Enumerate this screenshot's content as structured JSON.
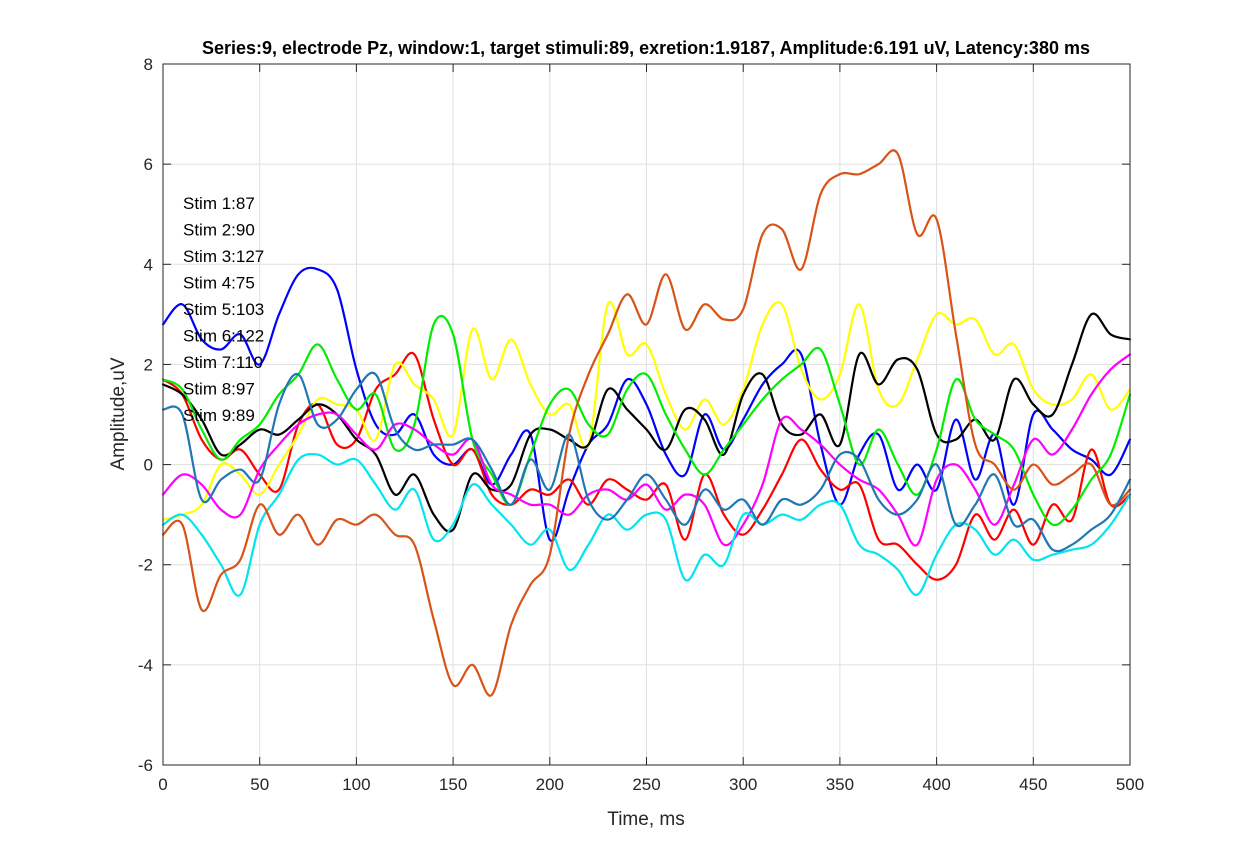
{
  "chart_data": {
    "type": "line",
    "title": "Series:9, electrode Pz, window:1, target stimuli:89, exretion:1.9187, Amplitude:6.191 uV, Latency:380 ms",
    "xlabel": "Time, ms",
    "ylabel": "Amplitude,uV",
    "xlim": [
      0,
      500
    ],
    "ylim": [
      -6,
      8
    ],
    "xticks": [
      0,
      50,
      100,
      150,
      200,
      250,
      300,
      350,
      400,
      450,
      500
    ],
    "yticks": [
      -6,
      -4,
      -2,
      0,
      2,
      4,
      6,
      8
    ],
    "grid": true,
    "annotations": [
      "Stim 1:87",
      "Stim 2:90",
      "Stim 3:127",
      "Stim 4:75",
      "Stim 5:103",
      "Stim 6:122",
      "Stim 7:110",
      "Stim 8:97",
      "Stim 9:89"
    ],
    "x": [
      0,
      10,
      20,
      30,
      40,
      50,
      60,
      70,
      80,
      90,
      100,
      110,
      120,
      130,
      140,
      150,
      160,
      170,
      180,
      190,
      200,
      210,
      220,
      230,
      240,
      250,
      260,
      270,
      280,
      290,
      300,
      310,
      320,
      330,
      340,
      350,
      360,
      370,
      380,
      390,
      400,
      410,
      420,
      430,
      440,
      450,
      460,
      470,
      480,
      490,
      500
    ],
    "series": [
      {
        "color": "#0000ff",
        "values": [
          2.8,
          3.2,
          2.5,
          2.3,
          2.6,
          2.0,
          3.0,
          3.8,
          3.9,
          3.5,
          1.9,
          0.8,
          0.6,
          1.0,
          0.2,
          0.0,
          0.3,
          -0.4,
          0.2,
          0.6,
          -1.5,
          -0.5,
          0.4,
          0.8,
          1.7,
          1.2,
          0.2,
          -0.2,
          1.0,
          0.3,
          0.9,
          1.6,
          2.0,
          2.2,
          0.4,
          -0.8,
          0.2,
          0.6,
          -0.5,
          0.0,
          -0.5,
          0.9,
          -0.3,
          0.6,
          -0.8,
          1.0,
          0.7,
          0.3,
          0.1,
          -0.2,
          0.5
        ]
      },
      {
        "color": "#ff0000",
        "values": [
          1.7,
          1.4,
          0.5,
          0.1,
          0.3,
          -0.2,
          -0.5,
          0.8,
          1.2,
          0.4,
          0.5,
          1.5,
          1.8,
          2.2,
          0.9,
          0.0,
          0.3,
          -0.6,
          -0.8,
          -0.5,
          -0.6,
          -0.3,
          -0.8,
          -0.3,
          -0.5,
          -0.7,
          -0.4,
          -1.5,
          -0.2,
          -1.0,
          -1.4,
          -0.9,
          -0.2,
          0.5,
          -0.1,
          -0.5,
          -0.4,
          -1.5,
          -1.6,
          -2.0,
          -2.3,
          -2.0,
          -1.0,
          -1.5,
          -0.9,
          -1.6,
          -0.8,
          -1.1,
          0.3,
          -0.8,
          -0.6
        ]
      },
      {
        "color": "#ffff00",
        "values": [
          -1.1,
          -1.0,
          -0.8,
          0.0,
          -0.2,
          -0.6,
          0.0,
          0.6,
          1.3,
          1.2,
          1.1,
          0.5,
          2.0,
          1.6,
          1.3,
          0.6,
          2.7,
          1.7,
          2.5,
          1.6,
          1.0,
          1.2,
          0.4,
          3.2,
          2.2,
          2.4,
          1.4,
          0.7,
          1.3,
          0.8,
          1.5,
          2.8,
          3.2,
          1.9,
          1.3,
          1.8,
          3.2,
          1.5,
          1.2,
          2.1,
          3.0,
          2.8,
          2.9,
          2.2,
          2.4,
          1.5,
          1.2,
          1.3,
          1.8,
          1.1,
          1.5
        ]
      },
      {
        "color": "#000000",
        "values": [
          1.6,
          1.4,
          0.9,
          0.2,
          0.4,
          0.7,
          0.6,
          0.9,
          1.2,
          1.0,
          0.5,
          0.2,
          -0.6,
          -0.2,
          -1.0,
          -1.3,
          -0.2,
          -0.5,
          -0.4,
          0.6,
          0.7,
          0.5,
          0.4,
          1.5,
          1.1,
          0.7,
          0.3,
          1.1,
          0.9,
          0.2,
          1.4,
          1.8,
          0.8,
          0.6,
          1.0,
          0.4,
          2.2,
          1.6,
          2.1,
          1.9,
          0.6,
          0.5,
          0.9,
          0.5,
          1.7,
          1.2,
          1.0,
          2.0,
          3.0,
          2.6,
          2.5
        ]
      },
      {
        "color": "#00ee00",
        "values": [
          1.7,
          1.5,
          0.7,
          0.1,
          0.5,
          0.8,
          1.4,
          1.8,
          2.4,
          1.7,
          1.1,
          1.4,
          0.3,
          0.8,
          2.8,
          2.6,
          0.5,
          -0.2,
          -0.8,
          0.2,
          1.2,
          1.5,
          0.8,
          0.6,
          1.5,
          1.8,
          1.0,
          0.3,
          -0.2,
          0.3,
          0.8,
          1.3,
          1.7,
          2.0,
          2.3,
          1.2,
          0.0,
          0.7,
          0.0,
          -0.6,
          0.3,
          1.7,
          0.9,
          0.6,
          0.3,
          -0.6,
          -1.2,
          -0.9,
          -0.3,
          0.2,
          1.4
        ]
      },
      {
        "color": "#ff00ff",
        "values": [
          -0.6,
          -0.2,
          -0.4,
          -0.9,
          -1.0,
          -0.1,
          0.4,
          0.8,
          1.0,
          1.0,
          0.6,
          0.3,
          0.8,
          0.7,
          0.4,
          0.2,
          0.5,
          -0.4,
          -0.6,
          -0.8,
          -0.8,
          -1.0,
          -0.6,
          -0.5,
          -0.7,
          -0.4,
          -0.9,
          -0.6,
          -0.8,
          -1.6,
          -1.2,
          -0.4,
          0.9,
          0.7,
          0.4,
          0.0,
          -0.3,
          -0.5,
          -1.0,
          -1.6,
          -0.3,
          0.0,
          -0.5,
          -1.2,
          -0.4,
          0.5,
          0.2,
          0.7,
          1.4,
          1.9,
          2.2
        ]
      },
      {
        "color": "#00e5ee",
        "values": [
          -1.2,
          -1.0,
          -1.4,
          -2.0,
          -2.6,
          -1.2,
          -0.6,
          0.1,
          0.2,
          0.0,
          0.1,
          -0.4,
          -0.9,
          -0.5,
          -1.5,
          -1.2,
          -0.4,
          -0.8,
          -1.2,
          -1.6,
          -1.3,
          -2.1,
          -1.6,
          -1.0,
          -1.3,
          -1.0,
          -1.1,
          -2.3,
          -1.8,
          -2.0,
          -1.0,
          -1.2,
          -1.0,
          -1.1,
          -0.8,
          -0.8,
          -1.6,
          -1.8,
          -2.1,
          -2.6,
          -1.8,
          -1.2,
          -1.3,
          -1.8,
          -1.5,
          -1.9,
          -1.8,
          -1.7,
          -1.6,
          -1.2,
          -0.6
        ]
      },
      {
        "color": "#d95319",
        "values": [
          -1.4,
          -1.2,
          -2.9,
          -2.2,
          -1.9,
          -0.8,
          -1.4,
          -1.0,
          -1.6,
          -1.1,
          -1.2,
          -1.0,
          -1.4,
          -1.6,
          -3.1,
          -4.4,
          -4.0,
          -4.6,
          -3.2,
          -2.4,
          -1.8,
          0.6,
          1.8,
          2.6,
          3.4,
          2.8,
          3.8,
          2.7,
          3.2,
          2.9,
          3.1,
          4.6,
          4.7,
          3.9,
          5.4,
          5.8,
          5.8,
          6.0,
          6.2,
          4.6,
          4.9,
          2.6,
          0.4,
          0.0,
          -0.5,
          0.0,
          -0.4,
          -0.2,
          0.0,
          -0.8,
          -0.5
        ]
      },
      {
        "color": "#1f77b4",
        "values": [
          1.1,
          1.0,
          -0.7,
          -0.3,
          -0.1,
          -0.3,
          1.2,
          1.8,
          0.8,
          0.9,
          1.5,
          1.8,
          0.7,
          0.3,
          0.4,
          0.4,
          0.5,
          -0.1,
          -0.8,
          0.1,
          -0.5,
          0.6,
          -0.7,
          -1.1,
          -0.7,
          -0.2,
          -0.7,
          -1.2,
          -0.5,
          -0.9,
          -0.7,
          -1.2,
          -0.7,
          -0.8,
          -0.5,
          0.2,
          0.1,
          -0.7,
          -1.0,
          -0.7,
          0.0,
          -1.2,
          -0.8,
          -0.2,
          -1.2,
          -1.1,
          -1.7,
          -1.6,
          -1.3,
          -1.0,
          -0.3
        ]
      }
    ]
  }
}
